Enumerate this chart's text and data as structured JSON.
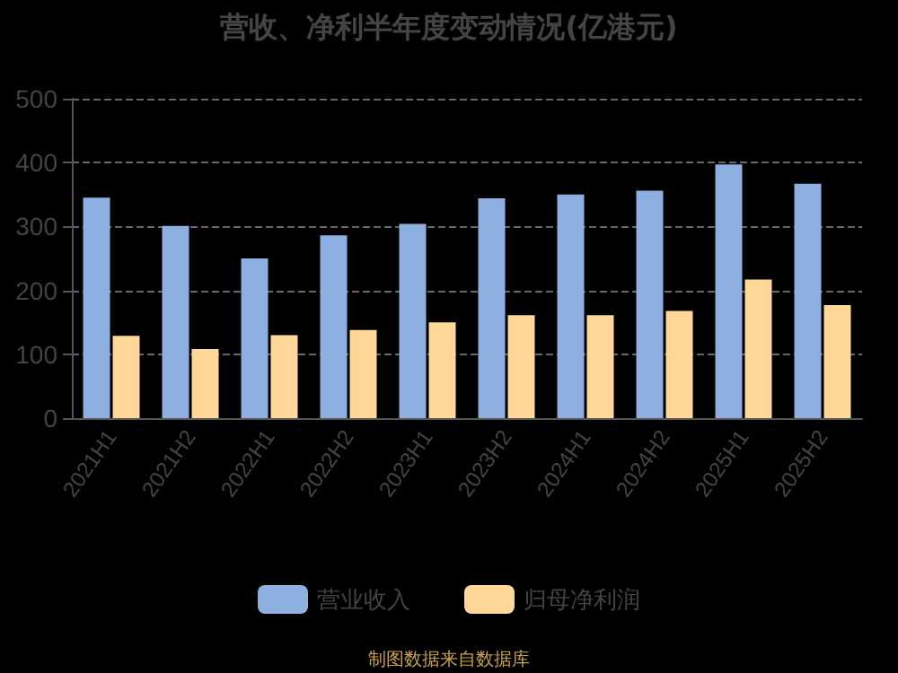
{
  "chart_data": {
    "type": "bar",
    "title": "营收、净利半年度变动情况(亿港元)",
    "categories": [
      "2021H1",
      "2021H2",
      "2022H1",
      "2022H2",
      "2023H1",
      "2023H2",
      "2024H1",
      "2024H2",
      "2025H1",
      "2025H2"
    ],
    "series": [
      {
        "name": "营业收入",
        "color": "#8eb0e0",
        "values": [
          345,
          301,
          250,
          286,
          304,
          344,
          350,
          356,
          397,
          367
        ]
      },
      {
        "name": "归母净利润",
        "color": "#ffd899",
        "values": [
          129,
          108,
          130,
          138,
          150,
          161,
          161,
          168,
          217,
          177
        ]
      }
    ],
    "ylim": [
      0,
      500
    ],
    "yticks": [
      0,
      100,
      200,
      300,
      400,
      500
    ],
    "grid": "y",
    "legend": "bottom",
    "annotations": [
      "制图数据来自数据库"
    ]
  }
}
